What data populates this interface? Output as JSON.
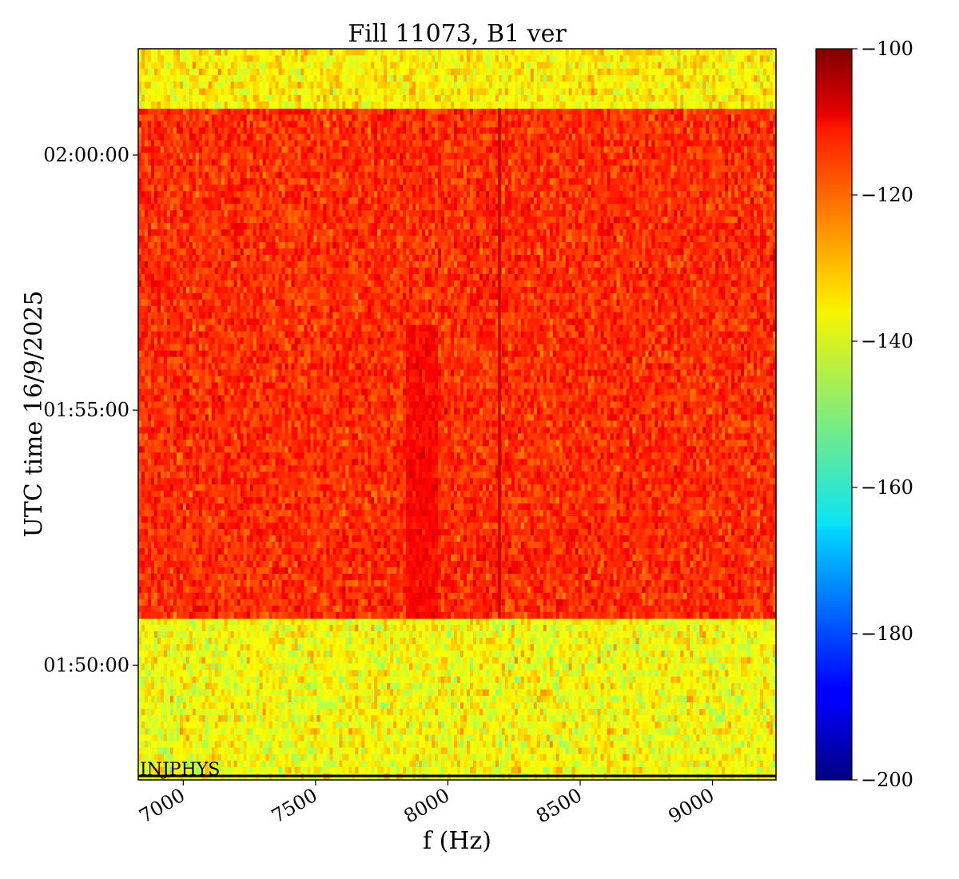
{
  "chart_data": {
    "type": "heatmap",
    "title": "Fill 11073, B1 ver",
    "xlabel": "f (Hz)",
    "ylabel": "UTC time 16/9/2025",
    "xlim": [
      6830,
      9240
    ],
    "ylim_seconds_of_day": [
      6465,
      7325
    ],
    "x_ticks": [
      {
        "value": 7000,
        "label": "7000"
      },
      {
        "value": 7500,
        "label": "7500"
      },
      {
        "value": 8000,
        "label": "8000"
      },
      {
        "value": 8500,
        "label": "8500"
      },
      {
        "value": 9000,
        "label": "9000"
      }
    ],
    "y_ticks": [
      {
        "value": 6600,
        "label": "01:50:00"
      },
      {
        "value": 6900,
        "label": "01:55:00"
      },
      {
        "value": 7200,
        "label": "02:00:00"
      }
    ],
    "colorbar": {
      "colormap": "jet",
      "range": [
        -200,
        -100
      ],
      "ticks": [
        {
          "value": -100,
          "label": "−100"
        },
        {
          "value": -120,
          "label": "−120"
        },
        {
          "value": -140,
          "label": "−140"
        },
        {
          "value": -160,
          "label": "−160"
        },
        {
          "value": -180,
          "label": "−180"
        },
        {
          "value": -200,
          "label": "−200"
        }
      ]
    },
    "regions": [
      {
        "t_start": 6465,
        "t_end": 6655,
        "mean_level": -138,
        "spread": 4.5
      },
      {
        "t_start": 6655,
        "t_end": 7255,
        "mean_level": -117,
        "spread": 3.5
      },
      {
        "t_start": 7255,
        "t_end": 7325,
        "mean_level": -136,
        "spread": 4
      }
    ],
    "features": [
      {
        "type": "line",
        "f": 8195,
        "t_start": 6655,
        "t_end": 7255,
        "level": -107
      },
      {
        "type": "band",
        "f_start": 7840,
        "f_end": 7960,
        "t_start": 6655,
        "t_end": 7000,
        "level": -110
      }
    ],
    "annotation": {
      "text": "INJPHYS",
      "t": 6470
    }
  }
}
